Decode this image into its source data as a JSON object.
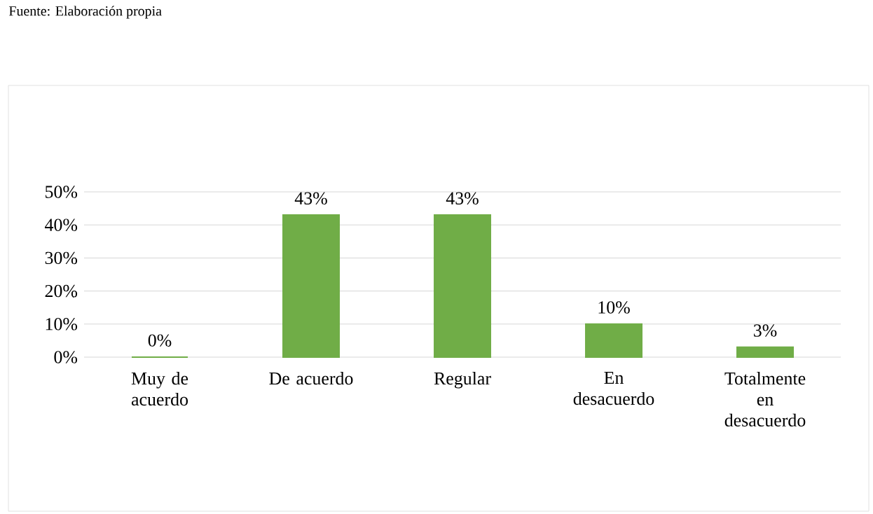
{
  "chart_data": {
    "type": "bar",
    "annotations": [
      "Fuente: Elaboración propia"
    ],
    "categories": [
      "Muy de acuerdo",
      "De acuerdo",
      "Regular",
      "En desacuerdo",
      "Totalmente en desacuerdo"
    ],
    "values": [
      0,
      43,
      43,
      10,
      3
    ],
    "value_labels": [
      "0%",
      "43%",
      "43%",
      "10%",
      "3%"
    ],
    "color": "#70ad47",
    "ylim": [
      0,
      50
    ],
    "yticks": [
      {
        "value": 0,
        "label": "0%"
      },
      {
        "value": 10,
        "label": "10%"
      },
      {
        "value": 20,
        "label": "20%"
      },
      {
        "value": 30,
        "label": "30%"
      },
      {
        "value": 40,
        "label": "40%"
      },
      {
        "value": 50,
        "label": "50%"
      }
    ],
    "grid": "y"
  }
}
